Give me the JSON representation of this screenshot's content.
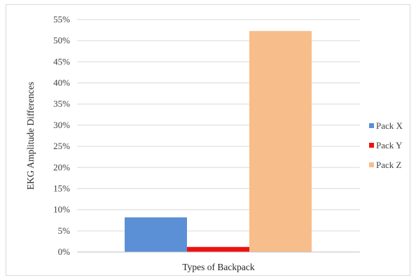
{
  "chart_data": {
    "type": "bar",
    "categories": [
      ""
    ],
    "series": [
      {
        "name": "Pack X",
        "values": [
          8.2
        ],
        "color": "#5b8fd6"
      },
      {
        "name": "Pack Y",
        "values": [
          1.2
        ],
        "color": "#ee1111"
      },
      {
        "name": "Pack Z",
        "values": [
          52.3
        ],
        "color": "#f7bd8a"
      }
    ],
    "xlabel": "Types of Backpack",
    "ylabel": "EKG Amplitude Differences",
    "ylim": [
      0,
      55
    ],
    "yticks": [
      0,
      5,
      10,
      15,
      20,
      25,
      30,
      35,
      40,
      45,
      50,
      55
    ],
    "ytick_labels": [
      "0%",
      "5%",
      "10%",
      "15%",
      "20%",
      "25%",
      "30%",
      "35%",
      "40%",
      "45%",
      "50%",
      "55%"
    ],
    "grid": true,
    "legend_position": "right"
  }
}
